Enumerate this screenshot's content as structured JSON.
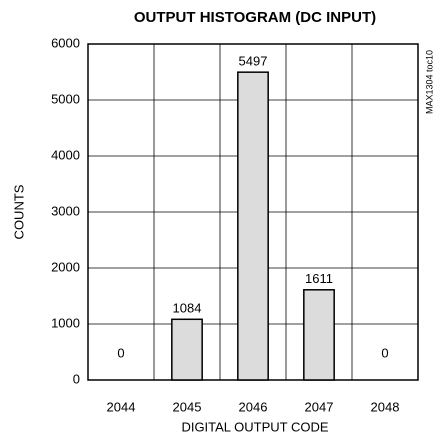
{
  "chart_data": {
    "type": "bar",
    "title": "OUTPUT HISTOGRAM (DC INPUT)",
    "x_label": "DIGITAL OUTPUT CODE",
    "y_label": "COUNTS",
    "annotation": "MAX1304 toc10",
    "categories": [
      "2044",
      "2045",
      "2046",
      "2047",
      "2048"
    ],
    "values": [
      0,
      1084,
      5497,
      1611,
      0
    ],
    "color": "#dcdcdc",
    "ylim": [
      0,
      6000
    ],
    "yticks": [
      0,
      1000,
      2000,
      3000,
      4000,
      5000,
      6000
    ],
    "grid": true
  }
}
